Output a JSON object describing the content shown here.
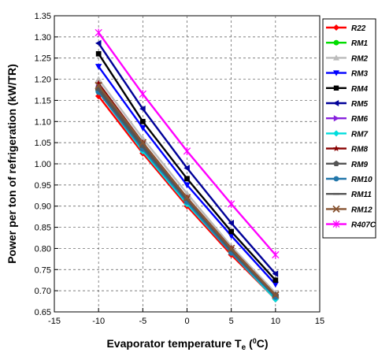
{
  "chart_data": {
    "type": "line",
    "xlabel": "Evaporator temperature T",
    "xlabel_sub": "e",
    "xlabel_open": " (",
    "xlabel_sup": "0",
    "xlabel_close": "C)",
    "ylabel": "Power per ton of refrigeration (kW/TR)",
    "xlim": [
      -15,
      15
    ],
    "ylim": [
      0.65,
      1.35
    ],
    "xticks": [
      "-15",
      "-10",
      "-5",
      "0",
      "5",
      "10",
      "15"
    ],
    "yticks": [
      "0.65",
      "0.70",
      "0.75",
      "0.80",
      "0.85",
      "0.90",
      "0.95",
      "1.00",
      "1.05",
      "1.10",
      "1.15",
      "1.20",
      "1.25",
      "1.30",
      "1.35"
    ],
    "grid": true,
    "legend_position": "right",
    "x": [
      -10,
      -5,
      0,
      5,
      10
    ],
    "series": [
      {
        "name": "R22",
        "color": "#ff0000",
        "marker": "diamond",
        "values": [
          1.16,
          1.025,
          0.9,
          0.785,
          0.68
        ]
      },
      {
        "name": "RM1",
        "color": "#00dd00",
        "marker": "circle",
        "values": [
          1.17,
          1.035,
          0.91,
          0.79,
          0.685
        ]
      },
      {
        "name": "RM2",
        "color": "#bbbbbb",
        "marker": "triangle-up",
        "values": [
          1.2,
          1.06,
          0.93,
          0.805,
          0.695
        ]
      },
      {
        "name": "RM3",
        "color": "#0000ff",
        "marker": "triangle-down",
        "values": [
          1.23,
          1.085,
          0.95,
          0.83,
          0.715
        ]
      },
      {
        "name": "RM4",
        "color": "#000000",
        "marker": "square",
        "values": [
          1.26,
          1.1,
          0.965,
          0.84,
          0.725
        ]
      },
      {
        "name": "RM5",
        "color": "#000099",
        "marker": "triangle-left",
        "values": [
          1.285,
          1.13,
          0.99,
          0.86,
          0.74
        ]
      },
      {
        "name": "RM6",
        "color": "#8822dd",
        "marker": "triangle-right",
        "values": [
          1.18,
          1.04,
          0.915,
          0.795,
          0.69
        ]
      },
      {
        "name": "RM7",
        "color": "#00dddd",
        "marker": "diamond",
        "values": [
          1.17,
          1.03,
          0.905,
          0.79,
          0.68
        ]
      },
      {
        "name": "RM8",
        "color": "#880000",
        "marker": "star",
        "values": [
          1.19,
          1.05,
          0.92,
          0.8,
          0.69
        ]
      },
      {
        "name": "RM9",
        "color": "#555555",
        "marker": "pentagon",
        "values": [
          1.18,
          1.045,
          0.915,
          0.795,
          0.69
        ]
      },
      {
        "name": "RM10",
        "color": "#2277aa",
        "marker": "circle",
        "values": [
          1.17,
          1.035,
          0.91,
          0.79,
          0.685
        ]
      },
      {
        "name": "RM11",
        "color": "#555555",
        "marker": "dash",
        "values": [
          1.175,
          1.04,
          0.915,
          0.795,
          0.688
        ]
      },
      {
        "name": "RM12",
        "color": "#885533",
        "marker": "x",
        "values": [
          1.185,
          1.05,
          0.92,
          0.8,
          0.69
        ]
      },
      {
        "name": "R407C",
        "color": "#ff00ff",
        "marker": "asterisk",
        "values": [
          1.31,
          1.165,
          1.03,
          0.905,
          0.785
        ]
      }
    ]
  }
}
